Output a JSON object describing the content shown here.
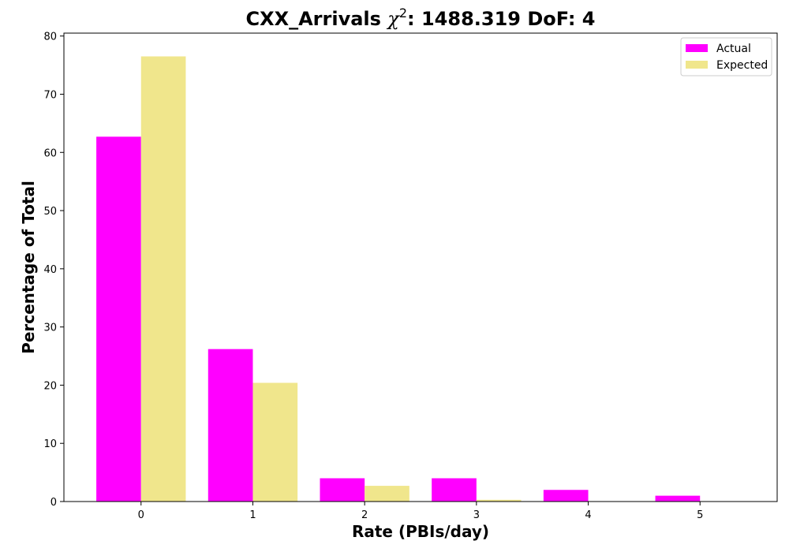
{
  "chart_data": {
    "type": "bar",
    "title_prefix": "CXX_Arrivals ",
    "title_chi": "χ",
    "title_sup": "2",
    "title_suffix": ": 1488.319 DoF: 4",
    "xlabel": "Rate (PBIs/day)",
    "ylabel": "Percentage of Total",
    "categories": [
      "0",
      "1",
      "2",
      "3",
      "4",
      "5"
    ],
    "x": [
      0,
      1,
      2,
      3,
      4,
      5
    ],
    "series": [
      {
        "name": "Actual",
        "color": "#ff00ff",
        "values": [
          62.7,
          26.2,
          4.0,
          4.0,
          2.0,
          1.0
        ]
      },
      {
        "name": "Expected",
        "color": "#f0e68c",
        "values": [
          76.5,
          20.4,
          2.7,
          0.3,
          0.0,
          0.0
        ]
      }
    ],
    "ylim": [
      0,
      80.5
    ],
    "xlim": [
      -0.69,
      5.69
    ],
    "yticks": [
      0,
      10,
      20,
      30,
      40,
      50,
      60,
      70,
      80
    ],
    "grid": false,
    "legend_position": "top-right"
  }
}
